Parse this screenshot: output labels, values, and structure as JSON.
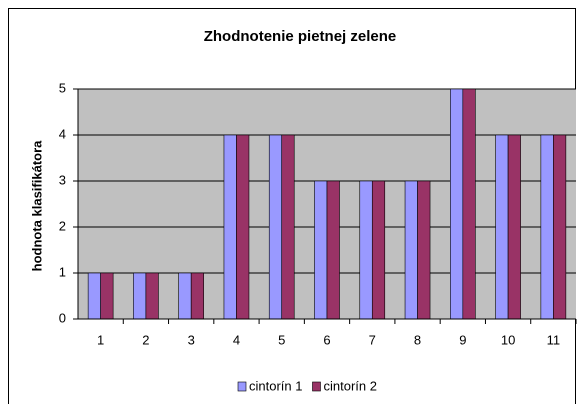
{
  "chart_data": {
    "type": "bar",
    "title": "Zhodnotenie pietnej zelene",
    "y_label": "hodnota klasifikátora",
    "categories": [
      "1",
      "2",
      "3",
      "4",
      "5",
      "6",
      "7",
      "8",
      "9",
      "10",
      "11"
    ],
    "series": [
      {
        "name": "cintorín 1",
        "color": "#9999ff",
        "values": [
          1,
          1,
          1,
          4,
          4,
          3,
          3,
          3,
          5,
          4,
          4
        ]
      },
      {
        "name": "cintorín 2",
        "color": "#993366",
        "values": [
          1,
          1,
          1,
          4,
          4,
          3,
          3,
          3,
          5,
          4,
          4
        ]
      }
    ],
    "ylim": [
      0,
      5
    ],
    "yticks": [
      0,
      1,
      2,
      3,
      4,
      5
    ],
    "grid": true,
    "legend": "bottom"
  }
}
